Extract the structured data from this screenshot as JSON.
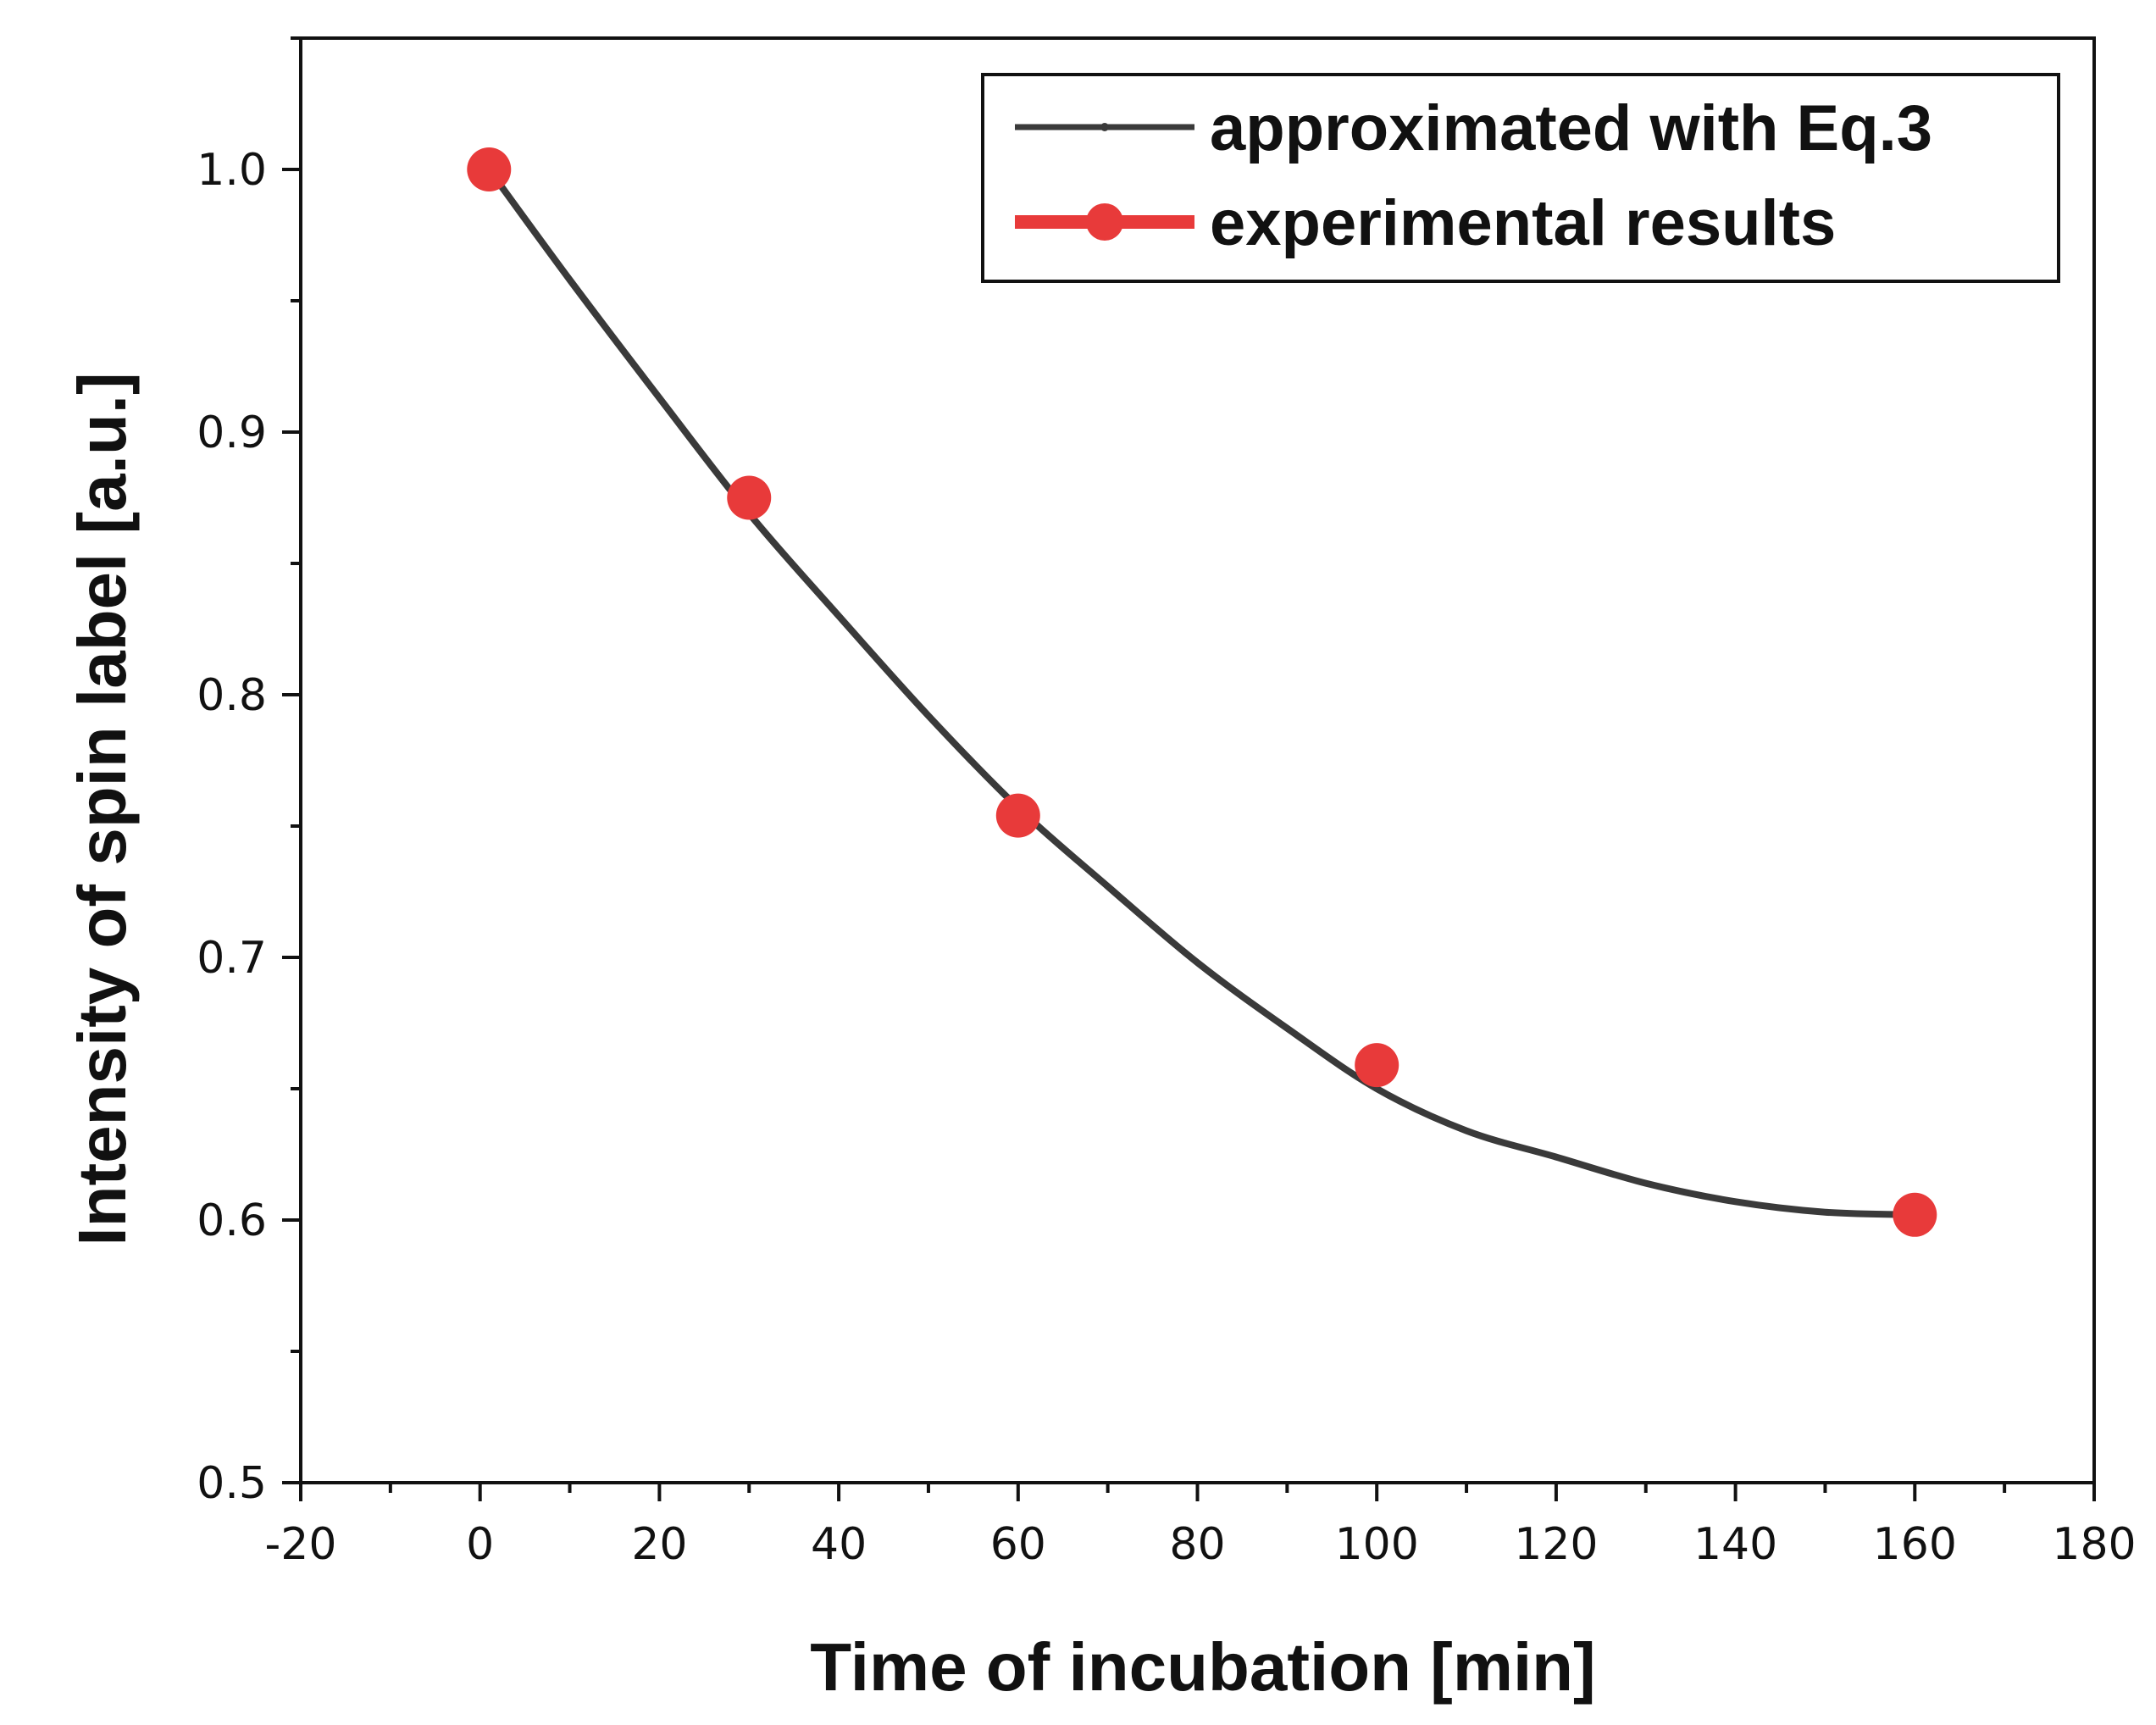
{
  "chart_data": {
    "type": "line",
    "title": "",
    "xlabel": "Time of incubation [min]",
    "ylabel": "Intensity of spin label [a.u.]",
    "xlim": [
      -20,
      180
    ],
    "ylim": [
      0.5,
      1.05
    ],
    "x_ticks": [
      -20,
      0,
      20,
      40,
      60,
      80,
      100,
      120,
      140,
      160,
      180
    ],
    "x_tick_labels": [
      "-20",
      "0",
      "20",
      "40",
      "60",
      "80",
      "100",
      "120",
      "140",
      "160",
      "180"
    ],
    "y_ticks": [
      0.5,
      0.6,
      0.7,
      0.8,
      0.9,
      1.0
    ],
    "y_tick_labels": [
      "0.5",
      "0.6",
      "0.7",
      "0.8",
      "0.9",
      "1.0"
    ],
    "grid": false,
    "legend_position": "top-right",
    "series": [
      {
        "name": "approximated with Eq.3",
        "style": "line",
        "color": "#3a3a3a",
        "x": [
          1,
          10,
          20,
          30,
          40,
          50,
          60,
          70,
          80,
          90,
          100,
          110,
          120,
          130,
          140,
          150,
          160
        ],
        "values": [
          1.0,
          0.958,
          0.913,
          0.869,
          0.83,
          0.792,
          0.757,
          0.727,
          0.698,
          0.673,
          0.65,
          0.634,
          0.624,
          0.614,
          0.607,
          0.603,
          0.602
        ]
      },
      {
        "name": "experimental results",
        "style": "markers",
        "color": "#e83a3a",
        "x": [
          1,
          30,
          60,
          100,
          160
        ],
        "values": [
          1.0,
          0.875,
          0.754,
          0.659,
          0.602
        ]
      }
    ]
  }
}
